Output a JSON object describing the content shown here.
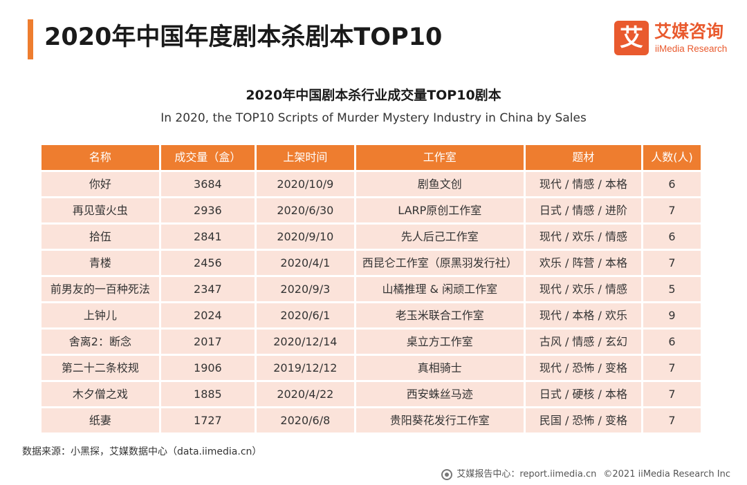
{
  "header": {
    "title": "2020年中国年度剧本杀剧本TOP10",
    "logo_mark": "艾",
    "logo_cn": "艾媒咨询",
    "logo_en": "iiMedia Research"
  },
  "chart": {
    "title_cn": "2020年中国剧本杀行业成交量TOP10剧本",
    "title_en": "In 2020, the TOP10 Scripts of Murder Mystery Industry in China by Sales"
  },
  "table": {
    "columns": [
      "名称",
      "成交量（盒）",
      "上架时间",
      "工作室",
      "题材",
      "人数(人)"
    ],
    "rows": [
      [
        "你好",
        "3684",
        "2020/10/9",
        "剧鱼文创",
        "现代 / 情感 / 本格",
        "6"
      ],
      [
        "再见萤火虫",
        "2936",
        "2020/6/30",
        "LARP原创工作室",
        "日式 / 情感 / 进阶",
        "7"
      ],
      [
        "拾伍",
        "2841",
        "2020/9/10",
        "先人后己工作室",
        "现代 / 欢乐 / 情感",
        "6"
      ],
      [
        "青楼",
        "2456",
        "2020/4/1",
        "西昆仑工作室（原黑羽发行社）",
        "欢乐 / 阵营 / 本格",
        "7"
      ],
      [
        "前男友的一百种死法",
        "2347",
        "2020/9/3",
        "山橘推理 & 闲顽工作室",
        "现代 / 欢乐 / 情感",
        "5"
      ],
      [
        "上钟儿",
        "2024",
        "2020/6/1",
        "老玉米联合工作室",
        "现代 / 本格 / 欢乐",
        "9"
      ],
      [
        "舍离2：断念",
        "2017",
        "2020/12/14",
        "桌立方工作室",
        "古风 / 情感 / 玄幻",
        "6"
      ],
      [
        "第二十二条校规",
        "1906",
        "2019/12/12",
        "真相骑士",
        "现代 / 恐怖 / 变格",
        "7"
      ],
      [
        "木夕僧之戏",
        "1885",
        "2020/4/22",
        "西安蛛丝马迹",
        "日式 / 硬核 / 本格",
        "7"
      ],
      [
        "纸妻",
        "1727",
        "2020/6/8",
        "贵阳葵花发行工作室",
        "民国 / 恐怖 / 变格",
        "7"
      ]
    ]
  },
  "source": "数据来源：小黑探，艾媒数据中心（data.iimedia.cn）",
  "footer": {
    "report_center": "艾媒报告中心：report.iimedia.cn",
    "copyright": "©2021  iiMedia Research  Inc"
  },
  "colors": {
    "accent": "#ee7d2f",
    "brand": "#e95a2e",
    "row_fill": "#fbe3da"
  }
}
